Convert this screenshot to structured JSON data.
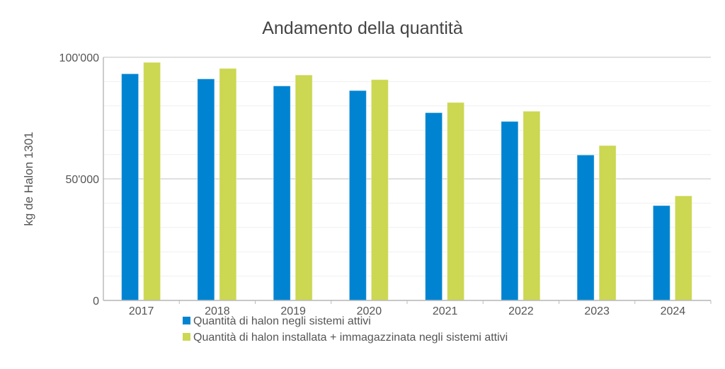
{
  "chart_data": {
    "type": "bar",
    "title": "Andamento della quantità",
    "ylabel": "kg de Halon 1301",
    "xlabel": "",
    "ylim": [
      0,
      100000
    ],
    "yticks": [
      0,
      50000,
      100000
    ],
    "ytick_labels": [
      "0",
      "50'000",
      "100'000"
    ],
    "minor_grid_step": 10000,
    "grid": true,
    "legend_position": "bottom",
    "categories": [
      "2017",
      "2018",
      "2019",
      "2020",
      "2021",
      "2022",
      "2023",
      "2024"
    ],
    "series": [
      {
        "name": "Quantità di halon negli sistemi attivi",
        "color": "#0084d1",
        "values": [
          93200,
          91100,
          88200,
          86300,
          77200,
          73600,
          59800,
          39000
        ]
      },
      {
        "name": "Quantità di halon installata + immagazzinata negli sistemi attivi",
        "color": "#ccd752",
        "values": [
          97900,
          95400,
          92700,
          90800,
          81400,
          77800,
          63700,
          43000
        ]
      }
    ]
  }
}
